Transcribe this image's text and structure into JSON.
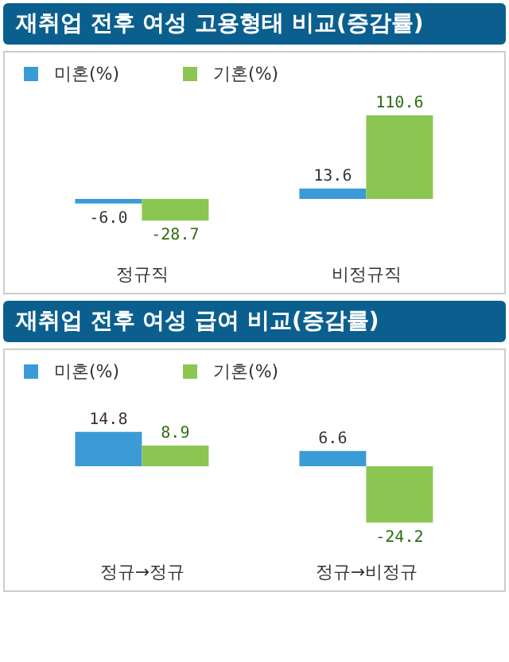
{
  "chart_data": [
    {
      "type": "bar",
      "title": "재취업 전후 여성 고용형태 비교(증감률)",
      "categories": [
        "정규직",
        "비정규직"
      ],
      "legend": "top left",
      "series": [
        {
          "name": "미혼(%)",
          "color": "#3b9bd6",
          "values": [
            -6.0,
            13.6
          ],
          "value_labels": [
            "-6.0",
            "13.6"
          ]
        },
        {
          "name": "기혼(%)",
          "color": "#8cc652",
          "values": [
            -28.7,
            110.6
          ],
          "value_labels": [
            "-28.7",
            "110.6"
          ]
        }
      ]
    },
    {
      "type": "bar",
      "title": "재취업 전후 여성 급여 비교(증감률)",
      "categories": [
        "정규→정규",
        "정규→비정규"
      ],
      "legend": "top left",
      "series": [
        {
          "name": "미혼(%)",
          "color": "#3b9bd6",
          "values": [
            14.8,
            6.6
          ],
          "value_labels": [
            "14.8",
            "6.6"
          ]
        },
        {
          "name": "기혼(%)",
          "color": "#8cc652",
          "values": [
            8.9,
            -24.2
          ],
          "value_labels": [
            "8.9",
            "-24.2"
          ]
        }
      ]
    }
  ]
}
